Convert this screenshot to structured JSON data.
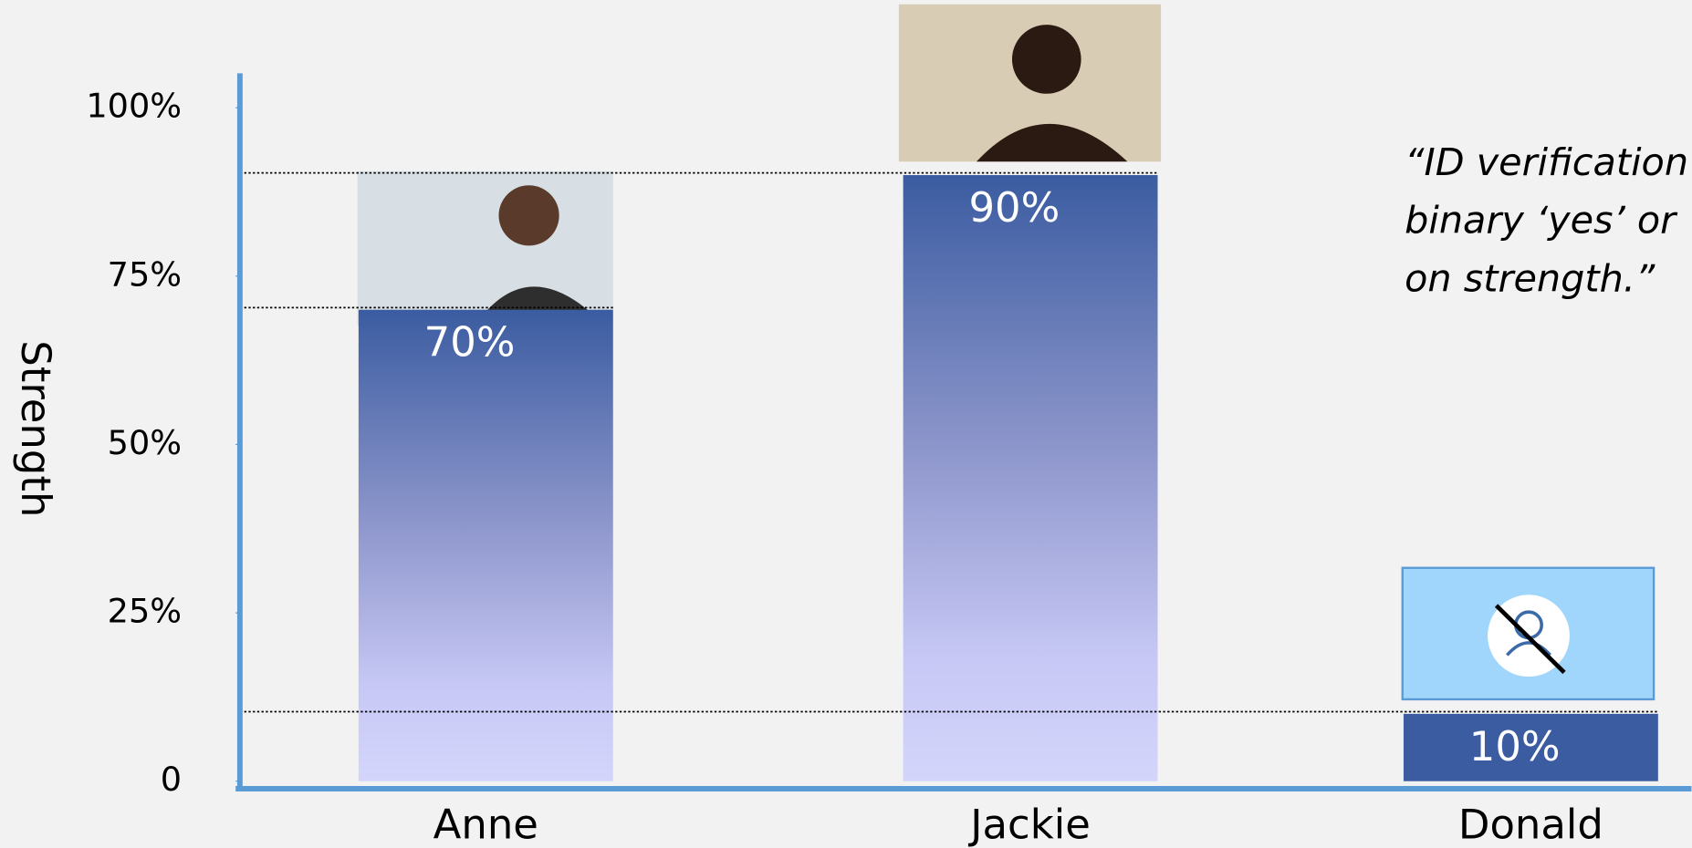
{
  "chart_data": {
    "type": "bar",
    "categories": [
      "Anne",
      "Jackie",
      "Donald"
    ],
    "values": [
      70,
      90,
      10
    ],
    "value_labels": [
      "70%",
      "90%",
      "10%"
    ],
    "color": "#3b5ca1",
    "ylabel": "Strength",
    "ylim": [
      0,
      100
    ],
    "yticks": [
      {
        "value": 0,
        "label": "0"
      },
      {
        "value": 25,
        "label": "25%"
      },
      {
        "value": 50,
        "label": "50%"
      },
      {
        "value": 75,
        "label": "75%"
      },
      {
        "value": 100,
        "label": "100%"
      }
    ],
    "annotation": [
      "“ID verification",
      "binary ‘yes’ or ‘",
      "on strength.”"
    ]
  }
}
